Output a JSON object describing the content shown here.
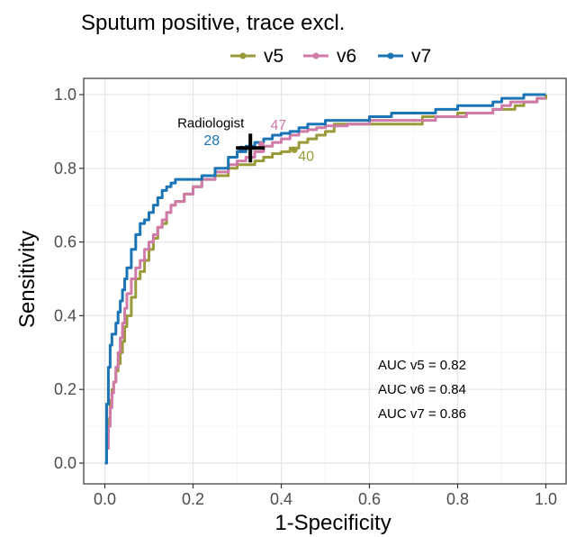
{
  "chart_data": {
    "type": "line",
    "title": "Sputum positive, trace excl.",
    "xlabel": "1-Specificity",
    "ylabel": "Sensitivity",
    "xlim": [
      0,
      1
    ],
    "ylim": [
      0,
      1
    ],
    "x_ticks": [
      "0.0",
      "0.2",
      "0.4",
      "0.6",
      "0.8",
      "1.0"
    ],
    "y_ticks": [
      "0.0",
      "0.2",
      "0.4",
      "0.6",
      "0.8",
      "1.0"
    ],
    "grid": true,
    "legend_position": "top",
    "series": [
      {
        "name": "v5",
        "color": "#9a9a3a",
        "x": [
          0,
          0.004,
          0.008,
          0.012,
          0.016,
          0.02,
          0.025,
          0.03,
          0.035,
          0.04,
          0.045,
          0.05,
          0.06,
          0.07,
          0.08,
          0.09,
          0.1,
          0.11,
          0.12,
          0.13,
          0.14,
          0.15,
          0.16,
          0.18,
          0.2,
          0.22,
          0.25,
          0.28,
          0.3,
          0.32,
          0.34,
          0.36,
          0.38,
          0.4,
          0.42,
          0.44,
          0.46,
          0.48,
          0.5,
          0.52,
          0.55,
          0.6,
          0.65,
          0.7,
          0.72,
          0.75,
          0.8,
          0.85,
          0.88,
          0.9,
          0.93,
          0.95,
          0.98,
          1.0
        ],
        "y": [
          0,
          0.06,
          0.12,
          0.17,
          0.2,
          0.22,
          0.25,
          0.27,
          0.3,
          0.33,
          0.37,
          0.4,
          0.45,
          0.5,
          0.52,
          0.55,
          0.58,
          0.61,
          0.64,
          0.65,
          0.68,
          0.7,
          0.71,
          0.73,
          0.75,
          0.77,
          0.78,
          0.8,
          0.81,
          0.81,
          0.82,
          0.83,
          0.84,
          0.845,
          0.855,
          0.87,
          0.88,
          0.89,
          0.9,
          0.92,
          0.92,
          0.92,
          0.92,
          0.92,
          0.94,
          0.94,
          0.95,
          0.95,
          0.96,
          0.96,
          0.97,
          0.98,
          0.99,
          1.0
        ]
      },
      {
        "name": "v6",
        "color": "#d07aa8",
        "x": [
          0,
          0.004,
          0.008,
          0.012,
          0.016,
          0.02,
          0.025,
          0.03,
          0.035,
          0.04,
          0.045,
          0.05,
          0.06,
          0.07,
          0.08,
          0.09,
          0.1,
          0.11,
          0.12,
          0.13,
          0.14,
          0.15,
          0.16,
          0.18,
          0.2,
          0.22,
          0.25,
          0.28,
          0.3,
          0.32,
          0.34,
          0.36,
          0.38,
          0.4,
          0.42,
          0.44,
          0.46,
          0.48,
          0.5,
          0.55,
          0.6,
          0.65,
          0.7,
          0.75,
          0.8,
          0.82,
          0.85,
          0.88,
          0.9,
          0.92,
          0.95,
          0.98,
          1.0
        ],
        "y": [
          0,
          0.04,
          0.1,
          0.15,
          0.19,
          0.22,
          0.26,
          0.3,
          0.34,
          0.38,
          0.42,
          0.46,
          0.5,
          0.53,
          0.55,
          0.58,
          0.6,
          0.62,
          0.64,
          0.66,
          0.68,
          0.7,
          0.71,
          0.73,
          0.75,
          0.77,
          0.79,
          0.81,
          0.82,
          0.83,
          0.845,
          0.86,
          0.87,
          0.88,
          0.89,
          0.9,
          0.905,
          0.91,
          0.915,
          0.92,
          0.93,
          0.93,
          0.93,
          0.94,
          0.94,
          0.95,
          0.95,
          0.96,
          0.97,
          0.98,
          0.98,
          0.99,
          0.99
        ]
      },
      {
        "name": "v7",
        "color": "#1a74b5",
        "x": [
          0,
          0.004,
          0.008,
          0.012,
          0.016,
          0.02,
          0.025,
          0.03,
          0.035,
          0.04,
          0.045,
          0.05,
          0.06,
          0.07,
          0.08,
          0.09,
          0.1,
          0.11,
          0.12,
          0.13,
          0.14,
          0.15,
          0.16,
          0.18,
          0.2,
          0.22,
          0.25,
          0.28,
          0.3,
          0.32,
          0.34,
          0.36,
          0.38,
          0.4,
          0.42,
          0.44,
          0.46,
          0.5,
          0.55,
          0.6,
          0.65,
          0.7,
          0.75,
          0.8,
          0.85,
          0.88,
          0.9,
          0.92,
          0.95,
          1.0
        ],
        "y": [
          0,
          0.16,
          0.26,
          0.32,
          0.35,
          0.35,
          0.38,
          0.41,
          0.44,
          0.47,
          0.5,
          0.53,
          0.58,
          0.62,
          0.65,
          0.66,
          0.68,
          0.7,
          0.72,
          0.74,
          0.75,
          0.76,
          0.77,
          0.77,
          0.77,
          0.78,
          0.8,
          0.83,
          0.845,
          0.86,
          0.87,
          0.88,
          0.89,
          0.895,
          0.9,
          0.91,
          0.92,
          0.93,
          0.93,
          0.94,
          0.95,
          0.95,
          0.96,
          0.97,
          0.97,
          0.98,
          0.99,
          0.99,
          1.0,
          1.0
        ]
      }
    ],
    "points": [
      {
        "label": "28",
        "series": "v7",
        "x": 0.31,
        "y": 0.853
      },
      {
        "label": "47",
        "series": "v6",
        "x": 0.355,
        "y": 0.865
      },
      {
        "label": "40",
        "series": "v5",
        "x": 0.43,
        "y": 0.85
      }
    ],
    "reference": {
      "label": "Radiologist",
      "x": 0.33,
      "y": 0.855
    },
    "auc_lines": [
      "AUC v5 = 0.82",
      "AUC v6 = 0.84",
      "AUC v7 = 0.86"
    ]
  }
}
